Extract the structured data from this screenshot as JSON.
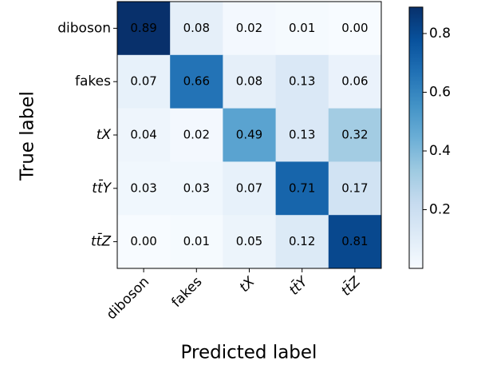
{
  "chart_data": {
    "type": "heatmap",
    "xlabel": "Predicted label",
    "ylabel": "True label",
    "x_categories": [
      "diboson",
      "fakes",
      "tX",
      "tt̄Y",
      "tt̄Z"
    ],
    "y_categories": [
      "diboson",
      "fakes",
      "tX",
      "tt̄Y",
      "tt̄Z"
    ],
    "values": [
      [
        0.89,
        0.08,
        0.02,
        0.01,
        0
      ],
      [
        0.07,
        0.66,
        0.08,
        0.13,
        0.06
      ],
      [
        0.04,
        0.02,
        0.49,
        0.13,
        0.32
      ],
      [
        0.03,
        0.03,
        0.07,
        0.71,
        0.17
      ],
      [
        0,
        0.01,
        0.05,
        0.12,
        0.81
      ]
    ],
    "value_labels": [
      [
        "0.89",
        "0.08",
        "0.02",
        "0.01",
        "0.00"
      ],
      [
        "0.07",
        "0.66",
        "0.08",
        "0.13",
        "0.06"
      ],
      [
        "0.04",
        "0.02",
        "0.49",
        "0.13",
        "0.32"
      ],
      [
        "0.03",
        "0.03",
        "0.07",
        "0.71",
        "0.17"
      ],
      [
        "0.00",
        "0.01",
        "0.05",
        "0.12",
        "0.81"
      ]
    ],
    "clim": [
      0,
      0.89
    ],
    "colorbar_ticks": [
      0.2,
      0.4,
      0.6,
      0.8
    ],
    "colormap": [
      "#f7fbff",
      "#deebf7",
      "#c6dbef",
      "#9ecae1",
      "#6baed6",
      "#4292c6",
      "#2171b5",
      "#08519c",
      "#08306b"
    ]
  }
}
